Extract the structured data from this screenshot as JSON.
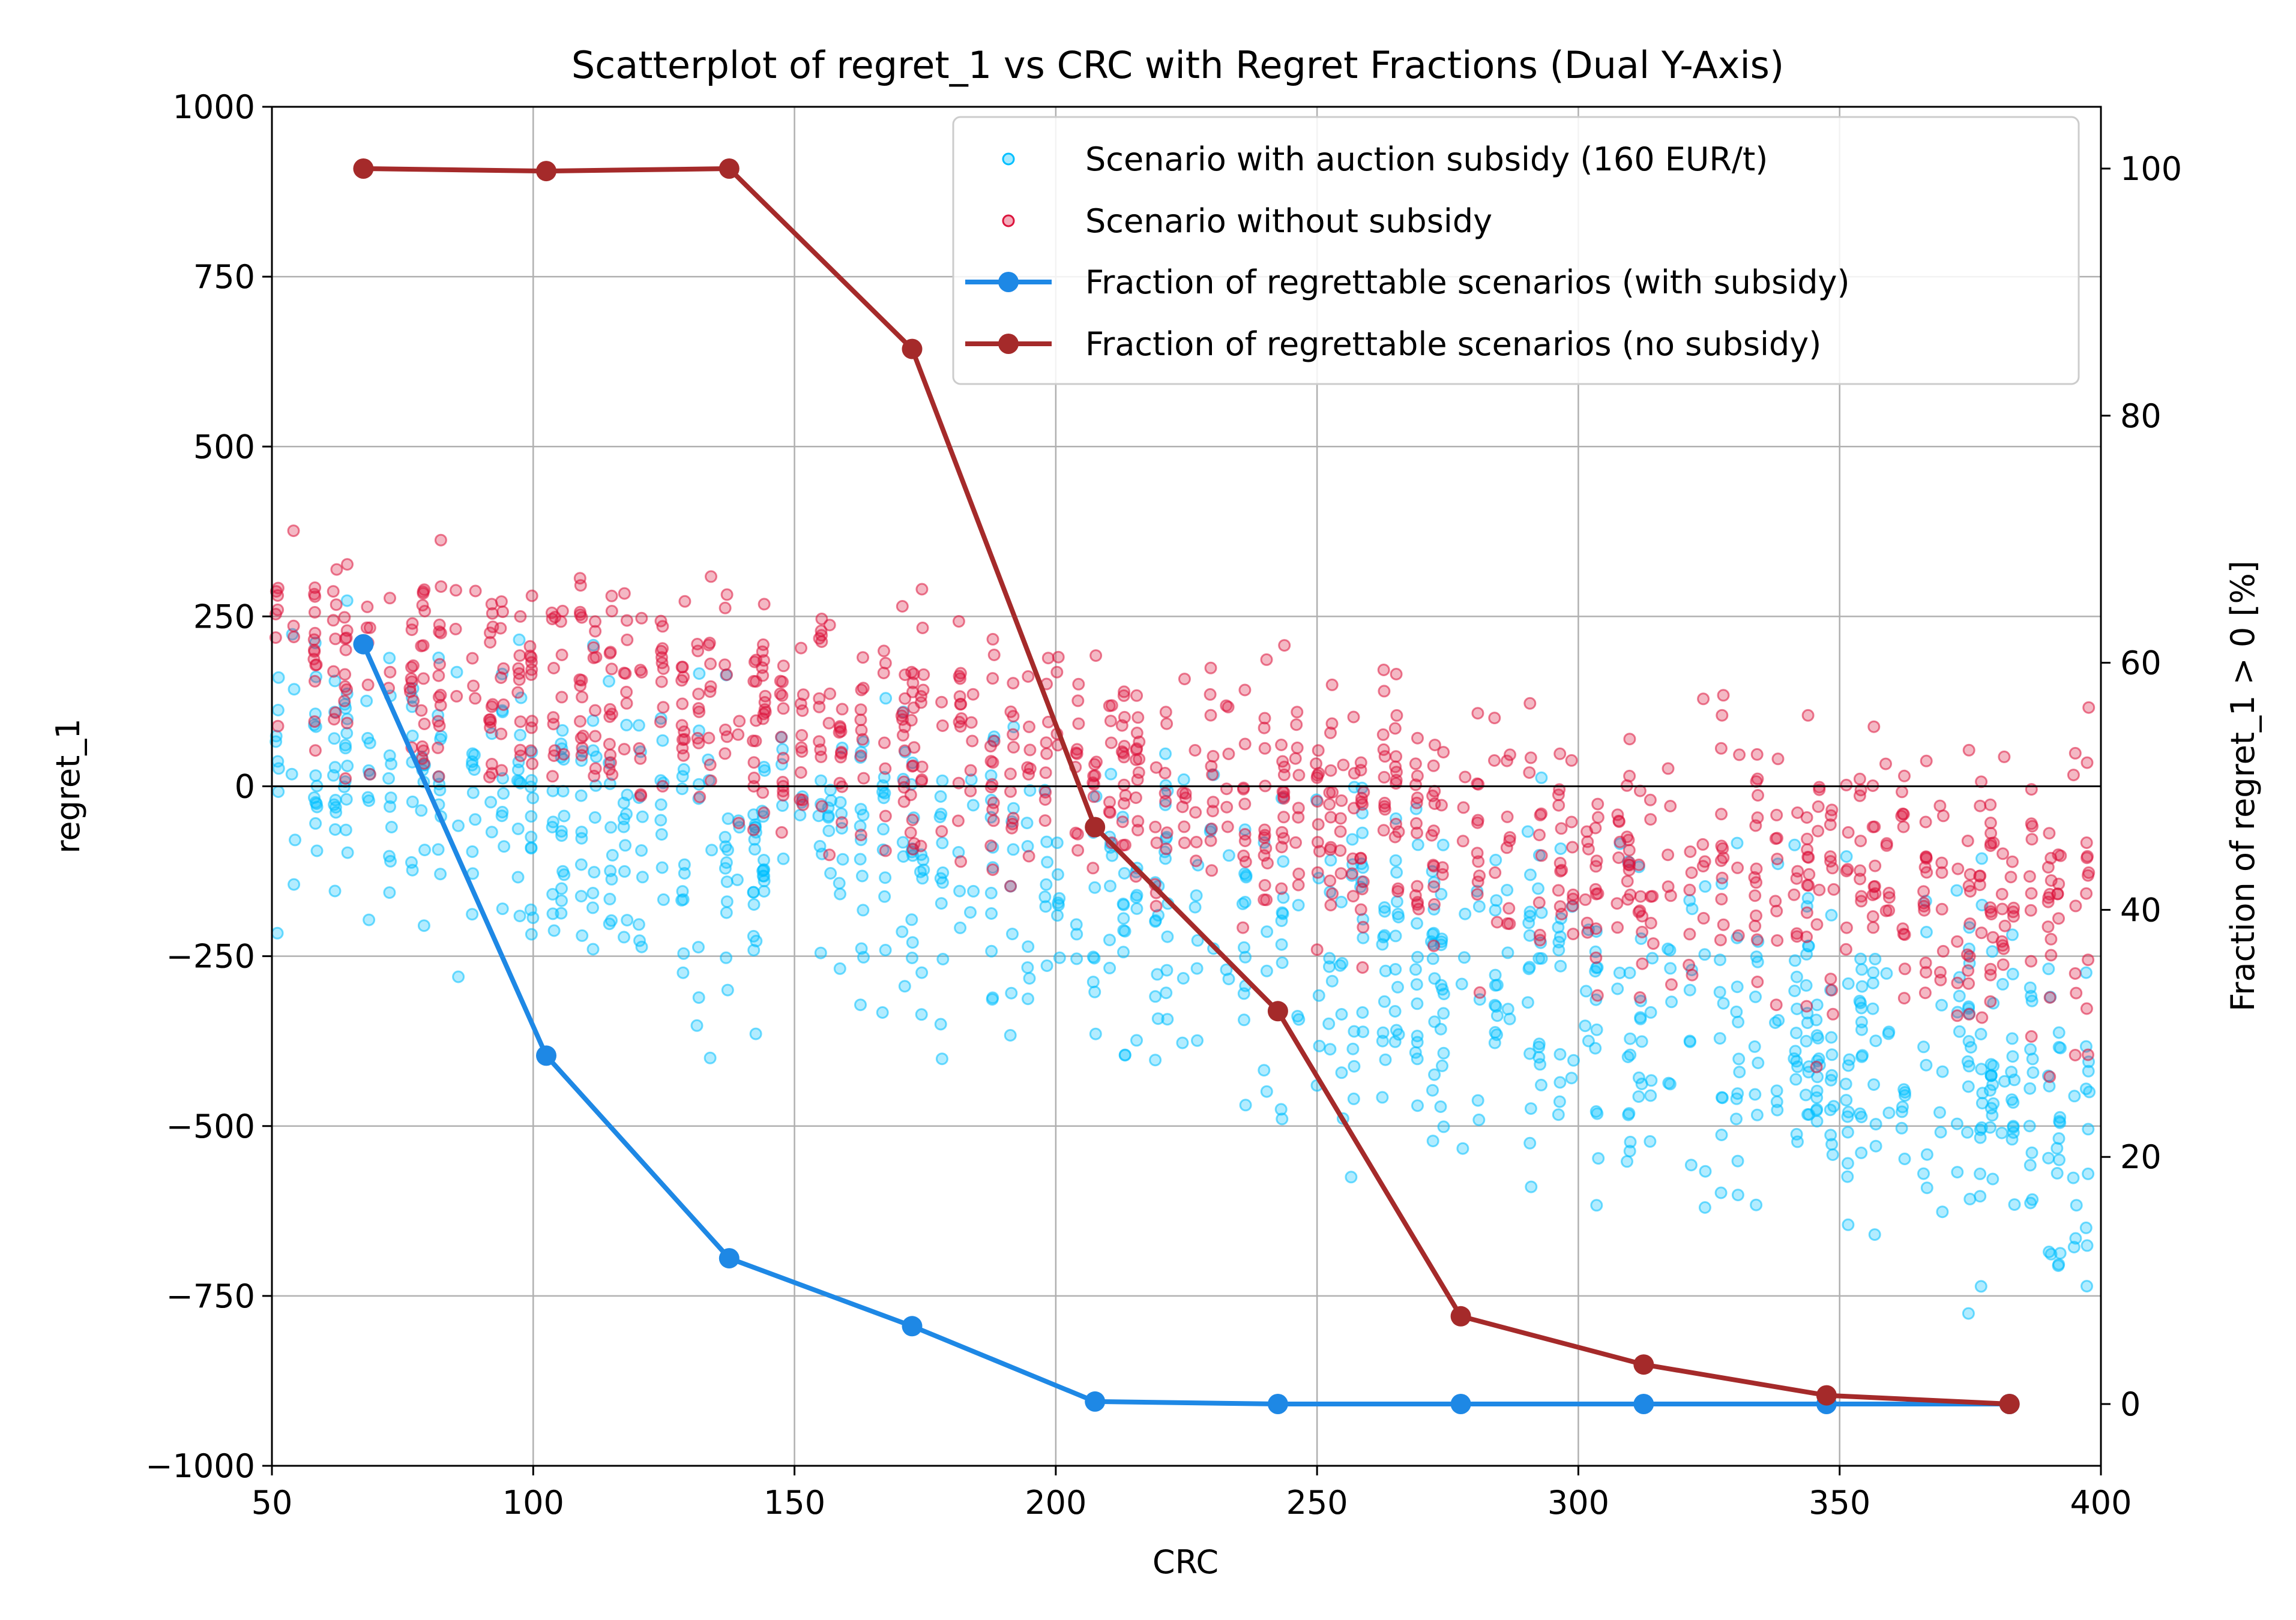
{
  "chart_data": {
    "type": "scatter",
    "title": "Scatterplot of regret_1 vs CRC with Regret Fractions (Dual Y-Axis)",
    "xlabel": "CRC",
    "ylabel": "regret_1",
    "y2label": "Fraction of regret_1 > 0 [%]",
    "xlim": [
      50,
      400
    ],
    "ylim": [
      -1000,
      1000
    ],
    "y2lim": [
      -5,
      105
    ],
    "xticks": [
      50,
      100,
      150,
      200,
      250,
      300,
      350,
      400
    ],
    "yticks": [
      -1000,
      -750,
      -500,
      -250,
      0,
      250,
      500,
      750,
      1000
    ],
    "y2ticks": [
      0,
      20,
      40,
      60,
      80,
      100
    ],
    "ytick_labels": [
      "−1000",
      "−750",
      "−500",
      "−250",
      "0",
      "250",
      "500",
      "750",
      "1000"
    ],
    "grid": true,
    "zero_line": 0,
    "legend_position": "top-right",
    "colors": {
      "with_subsidy_points": "#00bfff",
      "no_subsidy_points": "#dc143c",
      "with_subsidy_line": "#1e88e5",
      "no_subsidy_line": "#a52a2a"
    },
    "scatter_series": [
      {
        "name": "Scenario with auction subsidy (160 EUR/t)",
        "trend": {
          "x": [
            50,
            75,
            100,
            125,
            150,
            175,
            200,
            225,
            250,
            275,
            300,
            325,
            350,
            375,
            400
          ],
          "y": [
            60,
            20,
            -20,
            -60,
            -100,
            -140,
            -170,
            -200,
            -240,
            -280,
            -320,
            -360,
            -400,
            -440,
            -480
          ]
        },
        "spread": 140
      },
      {
        "name": "Scenario without subsidy",
        "trend": {
          "x": [
            50,
            75,
            100,
            125,
            150,
            175,
            200,
            225,
            250,
            275,
            300,
            325,
            350,
            375,
            400
          ],
          "y": [
            230,
            180,
            160,
            130,
            110,
            70,
            30,
            0,
            -30,
            -60,
            -90,
            -120,
            -140,
            -170,
            -190
          ]
        },
        "spread": 110
      }
    ],
    "line_series": [
      {
        "name": "Fraction of regrettable scenarios (with subsidy)",
        "axis": "right",
        "x": [
          67.5,
          102.5,
          137.5,
          172.5,
          207.5,
          242.5,
          277.5,
          312.5,
          347.5,
          382.5
        ],
        "y": [
          61.5,
          28.2,
          11.8,
          6.3,
          0.2,
          0.0,
          0.0,
          0.0,
          0.0,
          0.0
        ]
      },
      {
        "name": "Fraction of regrettable scenarios (no subsidy)",
        "axis": "right",
        "x": [
          67.5,
          102.5,
          137.5,
          172.5,
          207.5,
          242.5,
          277.5,
          312.5,
          347.5,
          382.5
        ],
        "y": [
          100.0,
          99.8,
          100.0,
          85.4,
          46.7,
          31.8,
          7.1,
          3.2,
          0.7,
          0.0
        ]
      }
    ]
  }
}
